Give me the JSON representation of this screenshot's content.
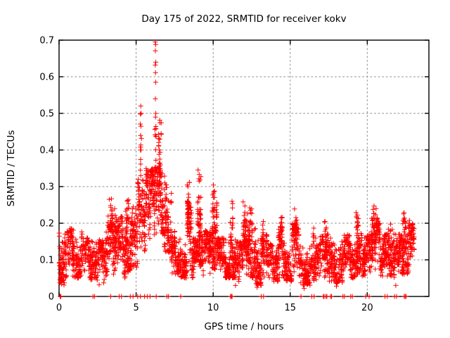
{
  "chart_data": {
    "type": "scatter",
    "title": "Day 175 of 2022, SRMTID for receiver kokv",
    "xlabel": "GPS time / hours",
    "ylabel": "SRMTID / TECUs",
    "xlim": [
      0,
      24
    ],
    "ylim": [
      0,
      0.7
    ],
    "xticks": [
      0,
      5,
      10,
      15,
      20
    ],
    "yticks": [
      0,
      0.1,
      0.2,
      0.3,
      0.4,
      0.5,
      0.6,
      0.7
    ],
    "grid": true,
    "legend": "none",
    "marker": {
      "shape": "plus",
      "size": 7,
      "color": "#ff0000"
    },
    "axis_color": "#000000",
    "grid_color": "#909090",
    "text_color": "#000000",
    "seed": 20220175,
    "series_name": "SRMTID",
    "noise_bands": [
      [
        0.0,
        0.5,
        0.03,
        0.19,
        80
      ],
      [
        0.5,
        1.5,
        0.05,
        0.185,
        150
      ],
      [
        1.5,
        2.3,
        0.045,
        0.16,
        110
      ],
      [
        2.3,
        3.0,
        0.035,
        0.155,
        100
      ],
      [
        3.0,
        3.4,
        0.05,
        0.2,
        65
      ],
      [
        3.4,
        3.8,
        0.06,
        0.24,
        75
      ],
      [
        3.8,
        4.3,
        0.05,
        0.22,
        75
      ],
      [
        4.3,
        4.7,
        0.06,
        0.26,
        75
      ],
      [
        4.7,
        5.1,
        0.08,
        0.25,
        65
      ],
      [
        5.1,
        5.6,
        0.12,
        0.32,
        85
      ],
      [
        5.6,
        6.2,
        0.14,
        0.35,
        100
      ],
      [
        6.2,
        6.8,
        0.17,
        0.36,
        100
      ],
      [
        6.8,
        7.3,
        0.12,
        0.3,
        75
      ],
      [
        7.3,
        7.9,
        0.06,
        0.18,
        85
      ],
      [
        7.9,
        8.3,
        0.05,
        0.15,
        65
      ],
      [
        8.3,
        8.6,
        0.08,
        0.26,
        55
      ],
      [
        8.6,
        9.0,
        0.05,
        0.16,
        65
      ],
      [
        9.0,
        9.35,
        0.08,
        0.28,
        65
      ],
      [
        9.35,
        9.9,
        0.05,
        0.18,
        85
      ],
      [
        9.9,
        10.25,
        0.07,
        0.26,
        65
      ],
      [
        10.25,
        11.0,
        0.05,
        0.16,
        115
      ],
      [
        11.0,
        11.45,
        0.05,
        0.21,
        75
      ],
      [
        11.45,
        11.95,
        0.04,
        0.15,
        75
      ],
      [
        11.95,
        12.2,
        0.06,
        0.21,
        45
      ],
      [
        12.2,
        12.75,
        0.05,
        0.23,
        85
      ],
      [
        12.75,
        13.5,
        0.03,
        0.17,
        105
      ],
      [
        13.5,
        14.2,
        0.04,
        0.145,
        95
      ],
      [
        14.2,
        14.65,
        0.05,
        0.19,
        65
      ],
      [
        14.65,
        15.1,
        0.04,
        0.135,
        65
      ],
      [
        15.1,
        15.65,
        0.05,
        0.2,
        75
      ],
      [
        15.65,
        16.5,
        0.03,
        0.14,
        115
      ],
      [
        16.5,
        17.55,
        0.04,
        0.17,
        145
      ],
      [
        17.55,
        18.5,
        0.035,
        0.16,
        130
      ],
      [
        18.5,
        19.2,
        0.05,
        0.17,
        105
      ],
      [
        19.2,
        19.65,
        0.06,
        0.2,
        70
      ],
      [
        19.65,
        20.25,
        0.055,
        0.17,
        90
      ],
      [
        20.25,
        20.85,
        0.07,
        0.215,
        90
      ],
      [
        20.85,
        21.35,
        0.055,
        0.17,
        75
      ],
      [
        21.35,
        21.75,
        0.05,
        0.2,
        60
      ],
      [
        21.75,
        22.25,
        0.04,
        0.17,
        75
      ],
      [
        22.25,
        22.75,
        0.06,
        0.22,
        80
      ],
      [
        22.75,
        23.05,
        0.08,
        0.2,
        45
      ]
    ],
    "bursts": [
      [
        3.3,
        0.3,
        0.18,
        0.275,
        18
      ],
      [
        4.45,
        0.25,
        0.2,
        0.272,
        14
      ],
      [
        5.3,
        0.1,
        0.3,
        0.48,
        8
      ],
      [
        5.85,
        0.45,
        0.28,
        0.35,
        16
      ],
      [
        6.25,
        0.1,
        0.33,
        0.5,
        10
      ],
      [
        6.55,
        0.18,
        0.3,
        0.485,
        26
      ],
      [
        6.9,
        0.15,
        0.26,
        0.34,
        10
      ],
      [
        8.42,
        0.22,
        0.18,
        0.32,
        20
      ],
      [
        9.1,
        0.22,
        0.16,
        0.35,
        26
      ],
      [
        10.05,
        0.22,
        0.18,
        0.305,
        24
      ],
      [
        11.2,
        0.18,
        0.14,
        0.26,
        16
      ],
      [
        12.0,
        0.12,
        0.14,
        0.26,
        12
      ],
      [
        12.45,
        0.22,
        0.15,
        0.285,
        20
      ],
      [
        13.2,
        0.18,
        0.13,
        0.205,
        10
      ],
      [
        14.4,
        0.18,
        0.14,
        0.225,
        12
      ],
      [
        15.35,
        0.2,
        0.14,
        0.24,
        16
      ],
      [
        16.5,
        0.08,
        0.13,
        0.19,
        6
      ],
      [
        17.3,
        0.15,
        0.13,
        0.21,
        9
      ],
      [
        19.35,
        0.2,
        0.14,
        0.235,
        14
      ],
      [
        20.45,
        0.3,
        0.15,
        0.25,
        22
      ],
      [
        21.5,
        0.15,
        0.13,
        0.22,
        10
      ],
      [
        22.4,
        0.25,
        0.15,
        0.25,
        18
      ],
      [
        22.75,
        0.15,
        0.14,
        0.22,
        9
      ]
    ],
    "points": [
      [
        5.3,
        0.52
      ],
      [
        5.33,
        0.5
      ],
      [
        5.28,
        0.498
      ],
      [
        5.31,
        0.465
      ],
      [
        5.29,
        0.44
      ],
      [
        5.32,
        0.4
      ],
      [
        5.27,
        0.345
      ],
      [
        5.3,
        0.33
      ],
      [
        6.24,
        0.695
      ],
      [
        6.27,
        0.688
      ],
      [
        6.25,
        0.671
      ],
      [
        6.28,
        0.64
      ],
      [
        6.24,
        0.632
      ],
      [
        6.26,
        0.611
      ],
      [
        6.27,
        0.585
      ],
      [
        6.25,
        0.54
      ],
      [
        6.28,
        0.5
      ],
      [
        6.26,
        0.49
      ],
      [
        12.85,
        0.025
      ],
      [
        15.9,
        0.022
      ],
      [
        11.45,
        0.03
      ],
      [
        2.6,
        0.032
      ],
      [
        21.85,
        0.03
      ],
      [
        18.0,
        0.028
      ]
    ],
    "zero_marks": [
      0.07,
      0.12,
      2.2,
      2.3,
      3.35,
      3.9,
      4.05,
      4.62,
      4.8,
      5.1,
      5.28,
      5.55,
      5.72,
      5.9,
      6.3,
      7.0,
      7.1,
      7.9,
      11.13,
      11.18,
      11.23,
      13.12,
      13.27,
      15.7,
      16.4,
      16.55,
      17.15,
      17.2,
      17.32,
      17.38,
      17.62,
      17.68,
      18.42,
      18.52,
      18.92,
      19.03,
      19.9,
      20.12,
      21.15,
      21.3,
      21.77,
      21.9,
      22.4,
      22.46,
      22.52
    ]
  }
}
